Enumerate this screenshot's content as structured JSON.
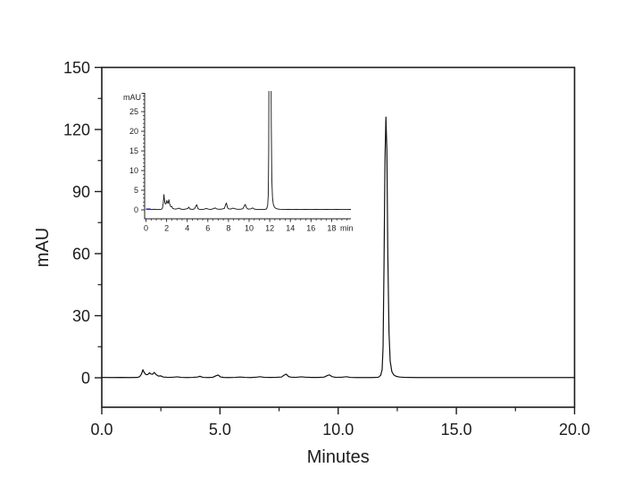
{
  "colors": {
    "background": "#ffffff",
    "line": "#1c1c1c",
    "trace": "#111111",
    "accent_blue": "#2323cc"
  },
  "chart_data": {
    "type": "line",
    "title": "",
    "main": {
      "xlabel": "Minutes",
      "ylabel": "mAU",
      "xlim": [
        0,
        20
      ],
      "ylim": [
        -14,
        150
      ],
      "grid": false,
      "x_major_ticks": [
        {
          "v": 0,
          "label": "0.0"
        },
        {
          "v": 5,
          "label": "5.0"
        },
        {
          "v": 10,
          "label": "10.0"
        },
        {
          "v": 15,
          "label": "15.0"
        },
        {
          "v": 20,
          "label": "20.0"
        }
      ],
      "x_minor_ticks": [
        2.5,
        7.5,
        12.5,
        17.5
      ],
      "y_major_ticks": [
        {
          "v": 0,
          "label": "0"
        },
        {
          "v": 30,
          "label": "30"
        },
        {
          "v": 60,
          "label": "60"
        },
        {
          "v": 90,
          "label": "90"
        },
        {
          "v": 120,
          "label": "120"
        },
        {
          "v": 150,
          "label": "150"
        }
      ],
      "y_minor_ticks": [
        15,
        45,
        75,
        105,
        135
      ]
    },
    "inset": {
      "ylabel": "mAU",
      "x_unit_label": "min",
      "xlim": [
        0,
        19.9
      ],
      "ylim": [
        -2.3,
        29.8
      ],
      "grid": false,
      "x_major_ticks": [
        {
          "v": 0,
          "label": "0"
        },
        {
          "v": 2,
          "label": "2"
        },
        {
          "v": 4,
          "label": "4"
        },
        {
          "v": 6,
          "label": "6"
        },
        {
          "v": 8,
          "label": "8"
        },
        {
          "v": 10,
          "label": "10"
        },
        {
          "v": 12,
          "label": "12"
        },
        {
          "v": 14,
          "label": "14"
        },
        {
          "v": 16,
          "label": "16"
        },
        {
          "v": 18,
          "label": "18"
        }
      ],
      "x_minor_step": 0.5,
      "y_major_ticks": [
        {
          "v": 0,
          "label": "0"
        },
        {
          "v": 5,
          "label": "5"
        },
        {
          "v": 10,
          "label": "10"
        },
        {
          "v": 15,
          "label": "15"
        },
        {
          "v": 20,
          "label": "20"
        },
        {
          "v": 25,
          "label": "25"
        }
      ],
      "y_minor_step": 1
    },
    "peaks": [
      {
        "t": 1.74,
        "mAU": 3.9
      },
      {
        "t": 2.02,
        "mAU": 2.4
      },
      {
        "t": 2.22,
        "mAU": 2.6
      },
      {
        "t": 4.15,
        "mAU": 0.7
      },
      {
        "t": 4.93,
        "mAU": 1.3
      },
      {
        "t": 7.8,
        "mAU": 1.75
      },
      {
        "t": 9.63,
        "mAU": 1.4
      },
      {
        "t": 12.02,
        "mAU": 126
      }
    ],
    "series": [
      {
        "name": "detector-signal",
        "color": "#111111",
        "points": [
          [
            0,
            0.15
          ],
          [
            0.4,
            0.1
          ],
          [
            0.8,
            0.15
          ],
          [
            1.2,
            0.1
          ],
          [
            1.5,
            0.15
          ],
          [
            1.6,
            0.5
          ],
          [
            1.68,
            1.8
          ],
          [
            1.74,
            3.9
          ],
          [
            1.8,
            2.4
          ],
          [
            1.87,
            1.5
          ],
          [
            1.95,
            1.6
          ],
          [
            2.02,
            2.4
          ],
          [
            2.08,
            1.8
          ],
          [
            2.15,
            1.7
          ],
          [
            2.22,
            2.6
          ],
          [
            2.3,
            1.5
          ],
          [
            2.4,
            0.8
          ],
          [
            2.5,
            0.9
          ],
          [
            2.6,
            0.35
          ],
          [
            2.75,
            0.25
          ],
          [
            2.9,
            0.2
          ],
          [
            3.05,
            0.3
          ],
          [
            3.2,
            0.45
          ],
          [
            3.35,
            0.2
          ],
          [
            3.6,
            0.12
          ],
          [
            3.85,
            0.2
          ],
          [
            4.05,
            0.35
          ],
          [
            4.15,
            0.7
          ],
          [
            4.28,
            0.2
          ],
          [
            4.5,
            0.12
          ],
          [
            4.7,
            0.25
          ],
          [
            4.85,
            1.05
          ],
          [
            4.93,
            1.3
          ],
          [
            5.02,
            0.4
          ],
          [
            5.15,
            0.15
          ],
          [
            5.4,
            0.1
          ],
          [
            5.65,
            0.18
          ],
          [
            5.85,
            0.35
          ],
          [
            6.05,
            0.18
          ],
          [
            6.3,
            0.12
          ],
          [
            6.55,
            0.3
          ],
          [
            6.7,
            0.5
          ],
          [
            6.85,
            0.25
          ],
          [
            7.1,
            0.15
          ],
          [
            7.35,
            0.2
          ],
          [
            7.6,
            0.35
          ],
          [
            7.72,
            1.3
          ],
          [
            7.8,
            1.75
          ],
          [
            7.9,
            0.6
          ],
          [
            8.0,
            0.3
          ],
          [
            8.2,
            0.18
          ],
          [
            8.45,
            0.45
          ],
          [
            8.6,
            0.3
          ],
          [
            8.85,
            0.15
          ],
          [
            9.15,
            0.15
          ],
          [
            9.4,
            0.3
          ],
          [
            9.55,
            1.1
          ],
          [
            9.63,
            1.4
          ],
          [
            9.75,
            0.5
          ],
          [
            9.9,
            0.2
          ],
          [
            10.15,
            0.25
          ],
          [
            10.35,
            0.5
          ],
          [
            10.5,
            0.2
          ],
          [
            10.75,
            0.12
          ],
          [
            11.1,
            0.12
          ],
          [
            11.45,
            0.1
          ],
          [
            11.7,
            0.25
          ],
          [
            11.8,
            1.2
          ],
          [
            11.86,
            4
          ],
          [
            11.9,
            15
          ],
          [
            11.94,
            55
          ],
          [
            11.98,
            105
          ],
          [
            12.02,
            126
          ],
          [
            12.06,
            110
          ],
          [
            12.1,
            60
          ],
          [
            12.15,
            22
          ],
          [
            12.2,
            8
          ],
          [
            12.27,
            3
          ],
          [
            12.35,
            1.4
          ],
          [
            12.45,
            0.7
          ],
          [
            12.6,
            0.35
          ],
          [
            12.8,
            0.2
          ],
          [
            13.0,
            0.15
          ],
          [
            13.4,
            0.1
          ],
          [
            13.8,
            0.12
          ],
          [
            14.2,
            0.1
          ],
          [
            14.6,
            0.12
          ],
          [
            15.0,
            0.1
          ],
          [
            15.5,
            0.12
          ],
          [
            16.0,
            0.1
          ],
          [
            16.5,
            0.12
          ],
          [
            17.0,
            0.1
          ],
          [
            17.5,
            0.12
          ],
          [
            18.0,
            0.1
          ],
          [
            18.5,
            0.12
          ],
          [
            19.0,
            0.1
          ],
          [
            19.5,
            0.1
          ],
          [
            20.0,
            0.12
          ]
        ]
      },
      {
        "name": "inset-baseline-marker",
        "color": "#2323cc",
        "inset_only": true,
        "points": [
          [
            0,
            0.2
          ],
          [
            0.45,
            0.2
          ]
        ]
      }
    ]
  }
}
